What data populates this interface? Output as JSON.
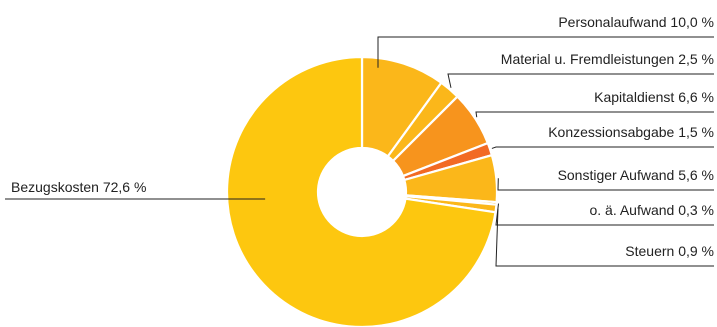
{
  "chart_data": {
    "type": "pie",
    "donut": true,
    "start_angle_deg": 0,
    "direction": "clockwise",
    "slices": [
      {
        "label": "Personalaufwand 10,0 %",
        "value": 10.0,
        "color": "#FBB71A"
      },
      {
        "label": "Material u. Fremdleistungen 2,5 %",
        "value": 2.5,
        "color": "#FBB71A"
      },
      {
        "label": "Kapitaldienst 6,6 %",
        "value": 6.6,
        "color": "#F7941D"
      },
      {
        "label": "Konzessionsabgabe 1,5 %",
        "value": 1.5,
        "color": "#F26A24"
      },
      {
        "label": "Sonstiger Aufwand 5,6 %",
        "value": 5.6,
        "color": "#FBB71A"
      },
      {
        "label": "o. ä. Aufwand 0,3 %",
        "value": 0.3,
        "color": "#FBB71A"
      },
      {
        "label": "Steuern 0,9 %",
        "value": 0.9,
        "color": "#FBB71A"
      },
      {
        "label": "Bezugskosten 72,6 %",
        "value": 72.6,
        "color": "#FDC70F"
      }
    ],
    "legend": "none"
  }
}
